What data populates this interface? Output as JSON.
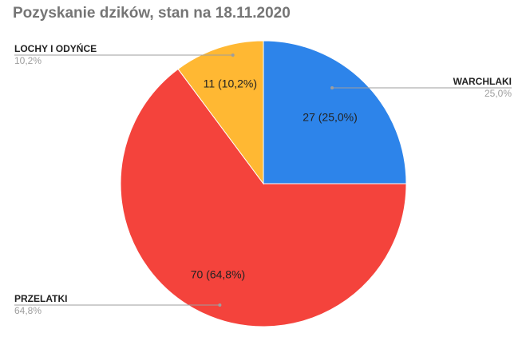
{
  "chart_data": {
    "type": "pie",
    "title": "Pozyskanie dzików, stan na 18.11.2020",
    "slices": [
      {
        "label": "WARCHLAKI",
        "value": 27,
        "percent": "25,0%",
        "slice_label": "27 (25,0%)",
        "color": "#2d84ea"
      },
      {
        "label": "PRZELATKI",
        "value": 70,
        "percent": "64,8%",
        "slice_label": "70 (64,8%)",
        "color": "#f4433c"
      },
      {
        "label": "LOCHY I ODYŃCE",
        "value": 11,
        "percent": "10,2%",
        "slice_label": "11 (10,2%)",
        "color": "#ffb833"
      }
    ],
    "start_angle": "12 o'clock",
    "direction": "clockwise"
  }
}
